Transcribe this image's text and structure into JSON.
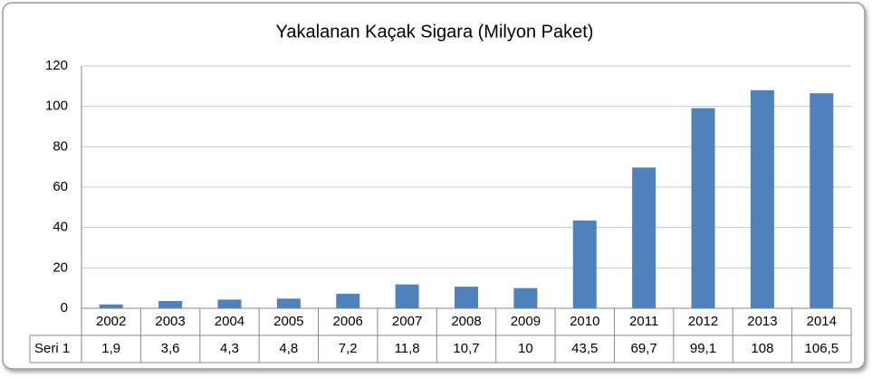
{
  "chart_data": {
    "type": "bar",
    "title": "Yakalanan Kaçak Sigara (Milyon Paket)",
    "categories": [
      "2002",
      "2003",
      "2004",
      "2005",
      "2006",
      "2007",
      "2008",
      "2009",
      "2010",
      "2011",
      "2012",
      "2013",
      "2014"
    ],
    "series": [
      {
        "name": "Seri 1",
        "color": "#4f81bd",
        "values": [
          1.9,
          3.6,
          4.3,
          4.8,
          7.2,
          11.8,
          10.7,
          10,
          43.5,
          69.7,
          99.1,
          108,
          106.5
        ],
        "value_labels": [
          "1,9",
          "3,6",
          "4,3",
          "4,8",
          "7,2",
          "11,8",
          "10,7",
          "10",
          "43,5",
          "69,7",
          "99,1",
          "108",
          "106,5"
        ]
      }
    ],
    "ylim": [
      0,
      120
    ],
    "yticks": [
      0,
      20,
      40,
      60,
      80,
      100,
      120
    ],
    "grid": true
  }
}
